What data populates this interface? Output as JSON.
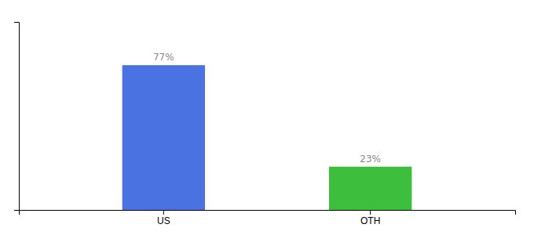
{
  "chart_data": {
    "type": "bar",
    "categories": [
      "US",
      "OTH"
    ],
    "values": [
      77,
      23
    ],
    "colors": [
      "#4a72e0",
      "#3dbf3d"
    ],
    "ylim": [
      0,
      100
    ],
    "data_labels": true,
    "value_labels": [
      "77%",
      "23%"
    ],
    "tick_labels": "x",
    "grid": false
  }
}
